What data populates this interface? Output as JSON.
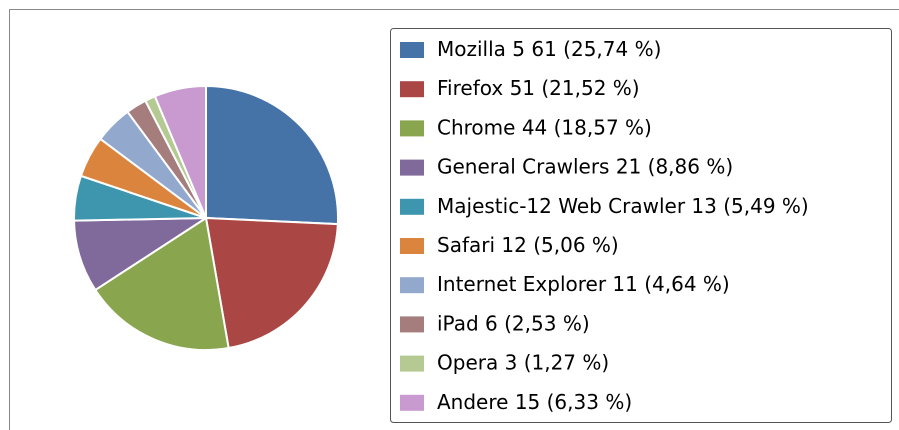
{
  "chart_data": {
    "type": "pie",
    "categories": [
      "Mozilla 5",
      "Firefox",
      "Chrome",
      "General Crawlers",
      "Majestic-12 Web Crawler",
      "Safari",
      "Internet Explorer",
      "iPad",
      "Opera",
      "Andere"
    ],
    "values": [
      61,
      51,
      44,
      21,
      13,
      12,
      11,
      6,
      3,
      15
    ],
    "percent_labels": [
      "(25,74 %)",
      "(21,52 %)",
      "(18,57 %)",
      "(8,86 %)",
      "(5,49 %)",
      "(5,06 %)",
      "(4,64 %)",
      "(2,53 %)",
      "(1,27 %)",
      "(6,33 %)"
    ],
    "colors": [
      "#4572a7",
      "#aa4643",
      "#89a54e",
      "#80699b",
      "#3d96ae",
      "#db843d",
      "#92a8cd",
      "#a47d7c",
      "#b5ca92",
      "#c99ad0"
    ],
    "legend": "right"
  }
}
